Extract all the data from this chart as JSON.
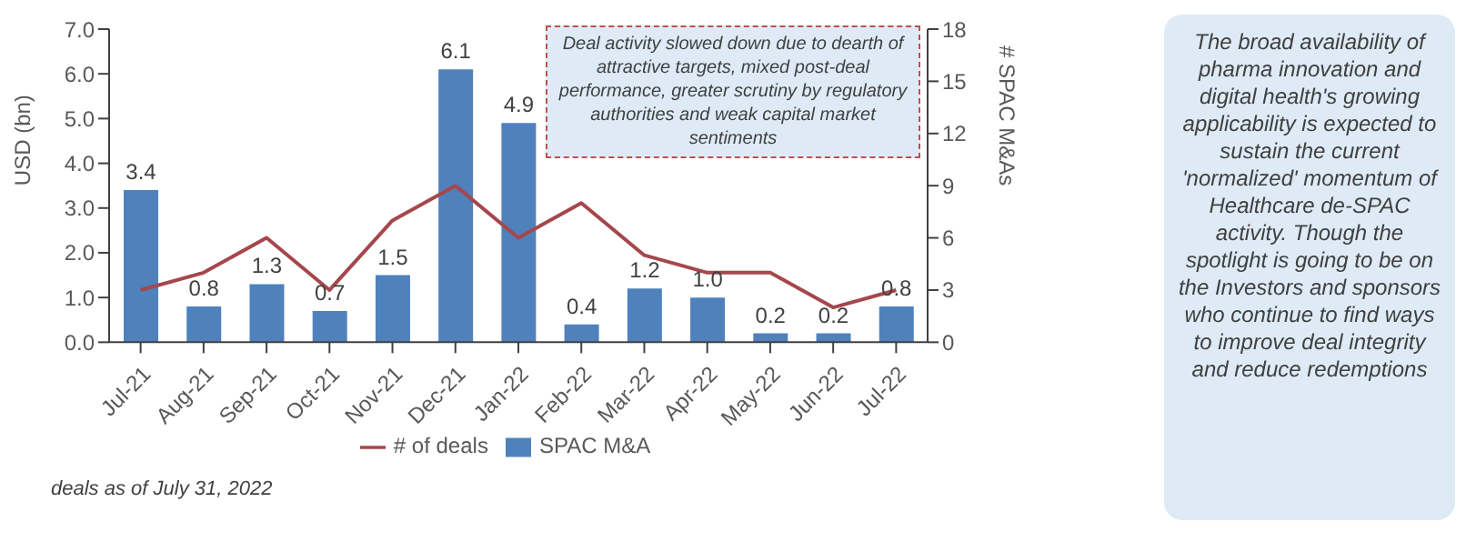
{
  "chart_data": {
    "type": "bar",
    "ylabel": "USD (bn)",
    "y2label": "# SPAC M&As",
    "categories": [
      "Jul-21",
      "Aug-21",
      "Sep-21",
      "Oct-21",
      "Nov-21",
      "Dec-21",
      "Jan-22",
      "Feb-22",
      "Mar-22",
      "Apr-22",
      "May-22",
      "Jun-22",
      "Jul-22"
    ],
    "series": [
      {
        "name": "SPAC M&A",
        "color": "#4f81bd",
        "values": [
          3.4,
          0.8,
          1.3,
          0.7,
          1.5,
          6.1,
          4.9,
          0.4,
          1.2,
          1.0,
          0.2,
          0.2,
          0.8
        ],
        "value_labels": [
          "3.4",
          "0.8",
          "1.3",
          "0.7",
          "1.5",
          "6.1",
          "4.9",
          "0.4",
          "1.2",
          "1.0",
          "0.2",
          "0.2",
          "0.8"
        ]
      },
      {
        "name": "# of deals",
        "type": "line",
        "axis": "y2",
        "color": "#a5474c",
        "values": [
          3,
          4,
          6,
          3,
          7,
          9,
          6,
          8,
          5,
          4,
          4,
          2,
          3
        ]
      }
    ],
    "ylim": [
      0,
      7
    ],
    "yticks": [
      {
        "value": 0,
        "label": "0.0"
      },
      {
        "value": 1,
        "label": "1.0"
      },
      {
        "value": 2,
        "label": "2.0"
      },
      {
        "value": 3,
        "label": "3.0"
      },
      {
        "value": 4,
        "label": "4.0"
      },
      {
        "value": 5,
        "label": "5.0"
      },
      {
        "value": 6,
        "label": "6.0"
      },
      {
        "value": 7,
        "label": "7.0"
      }
    ],
    "y2lim": [
      0,
      18
    ],
    "y2ticks": [
      0,
      3,
      6,
      9,
      12,
      15,
      18
    ],
    "legend": "bottom",
    "grid": false,
    "marker": "none",
    "line_style": "solid",
    "annotations": [
      "Deal activity slowed down due to dearth of attractive targets, mixed post-deal performance, greater scrutiny by regulatory authorities and weak capital market sentiments",
      "The broad availability of pharma innovation and digital health's growing applicability is expected to sustain the current 'normalized' momentum of Healthcare de-SPAC activity. Though the spotlight is going to be on the Investors and sponsors who continue to find ways to improve deal integrity and reduce redemptions",
      "deals as of July 31, 2022"
    ]
  }
}
